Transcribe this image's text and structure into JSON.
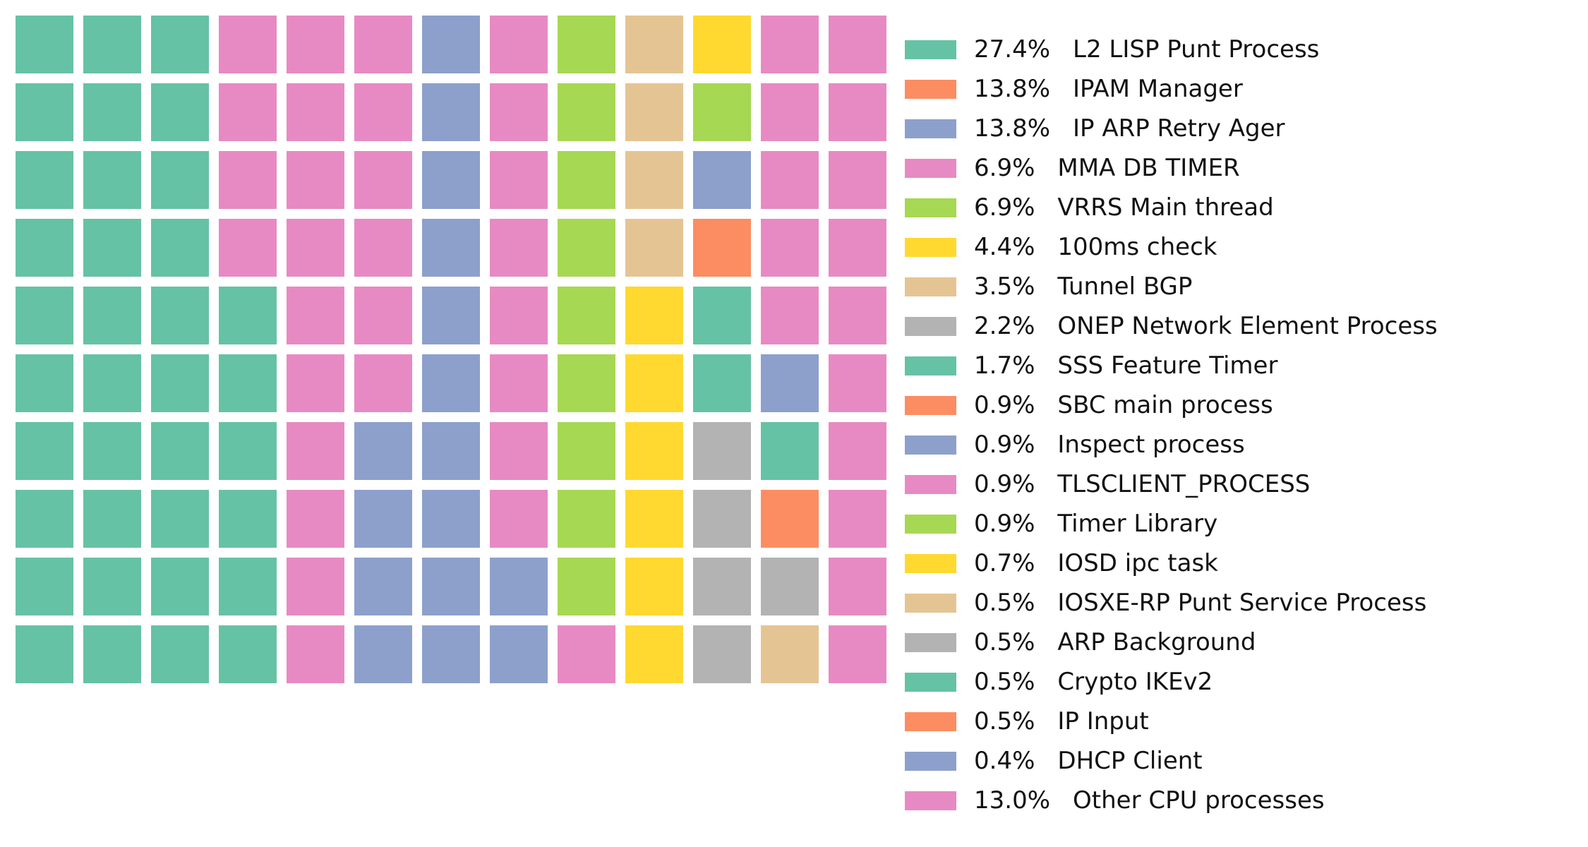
{
  "chart_data": {
    "type": "waffle",
    "rows": 10,
    "columns": 13,
    "series": [
      {
        "percent": "27.4%",
        "name": "L2 LISP Punt Process",
        "color": "#66c2a5"
      },
      {
        "percent": "13.8%",
        "name": "IPAM Manager",
        "color": "#fc8d62"
      },
      {
        "percent": "13.8%",
        "name": "IP ARP Retry Ager",
        "color": "#8da0cb"
      },
      {
        "percent": "6.9%",
        "name": "MMA DB TIMER",
        "color": "#e78ac3"
      },
      {
        "percent": "6.9%",
        "name": "VRRS Main thread",
        "color": "#a6d854"
      },
      {
        "percent": "4.4%",
        "name": "100ms check",
        "color": "#ffd92f"
      },
      {
        "percent": "3.5%",
        "name": "Tunnel BGP",
        "color": "#e5c494"
      },
      {
        "percent": "2.2%",
        "name": "ONEP Network Element Process",
        "color": "#b3b3b3"
      },
      {
        "percent": "1.7%",
        "name": "SSS Feature Timer",
        "color": "#66c2a5"
      },
      {
        "percent": "0.9%",
        "name": "SBC main process",
        "color": "#fc8d62"
      },
      {
        "percent": "0.9%",
        "name": "Inspect process",
        "color": "#8da0cb"
      },
      {
        "percent": "0.9%",
        "name": "TLSCLIENT_PROCESS",
        "color": "#e78ac3"
      },
      {
        "percent": "0.9%",
        "name": "Timer Library",
        "color": "#a6d854"
      },
      {
        "percent": "0.7%",
        "name": "IOSD ipc task",
        "color": "#ffd92f"
      },
      {
        "percent": "0.5%",
        "name": "IOSXE-RP Punt Service Process",
        "color": "#e5c494"
      },
      {
        "percent": "0.5%",
        "name": "ARP Background",
        "color": "#b3b3b3"
      },
      {
        "percent": "0.5%",
        "name": "Crypto IKEv2",
        "color": "#66c2a5"
      },
      {
        "percent": "0.5%",
        "name": "IP Input",
        "color": "#fc8d62"
      },
      {
        "percent": "0.4%",
        "name": "DHCP Client",
        "color": "#8da0cb"
      },
      {
        "percent": "13.0%",
        "name": "Other CPU processes",
        "color": "#e78ac3"
      }
    ],
    "column_counts": [
      [
        [
          0,
          10
        ]
      ],
      [
        [
          0,
          10
        ]
      ],
      [
        [
          0,
          10
        ]
      ],
      [
        [
          3,
          4
        ],
        [
          0,
          6
        ]
      ],
      [
        [
          3,
          10
        ]
      ],
      [
        [
          3,
          6
        ],
        [
          2,
          4
        ]
      ],
      [
        [
          2,
          10
        ]
      ],
      [
        [
          3,
          8
        ],
        [
          2,
          2
        ]
      ],
      [
        [
          4,
          9
        ],
        [
          3,
          1
        ]
      ],
      [
        [
          6,
          4
        ],
        [
          5,
          6
        ]
      ],
      [
        [
          5,
          1
        ],
        [
          4,
          1
        ],
        [
          2,
          1
        ],
        [
          9,
          1
        ],
        [
          8,
          2
        ],
        [
          7,
          2
        ],
        [
          15,
          2
        ]
      ],
      [
        [
          3,
          5
        ],
        [
          10,
          1
        ],
        [
          16,
          1
        ],
        [
          17,
          1
        ],
        [
          7,
          1
        ],
        [
          14,
          1
        ]
      ],
      [
        [
          11,
          10
        ]
      ]
    ]
  }
}
